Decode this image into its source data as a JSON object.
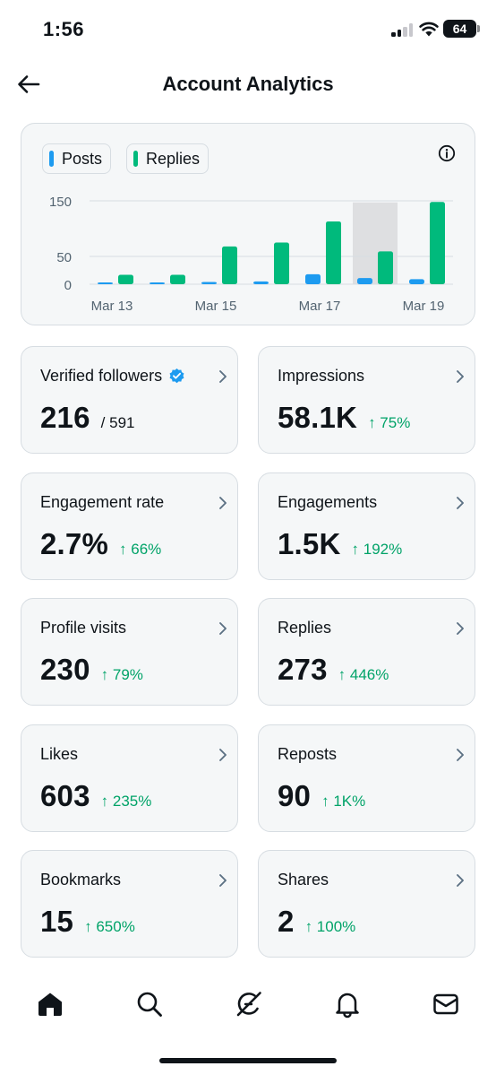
{
  "status_bar": {
    "time": "1:56",
    "battery": "64"
  },
  "header": {
    "title": "Account Analytics"
  },
  "colors": {
    "posts": "#1d9bf0",
    "replies": "#00ba7c",
    "positive": "#00a368"
  },
  "chart_data": {
    "type": "bar",
    "legend": [
      "Posts",
      "Replies"
    ],
    "x": [
      "Mar 13",
      "Mar 14",
      "Mar 15",
      "Mar 16",
      "Mar 17",
      "Mar 18",
      "Mar 19"
    ],
    "x_tick_labels": [
      "Mar 13",
      "Mar 15",
      "Mar 17",
      "Mar 19"
    ],
    "y_tick_labels": [
      "0",
      "50",
      "150"
    ],
    "ylim": [
      0,
      160
    ],
    "highlighted_category": "Mar 18",
    "series": [
      {
        "name": "Posts",
        "color": "#1d9bf0",
        "values": [
          1,
          0,
          4,
          5,
          18,
          11,
          9
        ]
      },
      {
        "name": "Replies",
        "color": "#00ba7c",
        "values": [
          17,
          17,
          68,
          75,
          113,
          59,
          148
        ]
      }
    ]
  },
  "cards": [
    {
      "label": "Verified followers",
      "value": "216",
      "sub": "/ 591",
      "delta": "",
      "verified": true
    },
    {
      "label": "Impressions",
      "value": "58.1K",
      "sub": "",
      "delta": "↑ 75%"
    },
    {
      "label": "Engagement rate",
      "value": "2.7%",
      "sub": "",
      "delta": "↑ 66%"
    },
    {
      "label": "Engagements",
      "value": "1.5K",
      "sub": "",
      "delta": "↑ 192%"
    },
    {
      "label": "Profile visits",
      "value": "230",
      "sub": "",
      "delta": "↑ 79%"
    },
    {
      "label": "Replies",
      "value": "273",
      "sub": "",
      "delta": "↑ 446%"
    },
    {
      "label": "Likes",
      "value": "603",
      "sub": "",
      "delta": "↑ 235%"
    },
    {
      "label": "Reposts",
      "value": "90",
      "sub": "",
      "delta": "↑ 1K%"
    },
    {
      "label": "Bookmarks",
      "value": "15",
      "sub": "",
      "delta": "↑ 650%"
    },
    {
      "label": "Shares",
      "value": "2",
      "sub": "",
      "delta": "↑ 100%"
    }
  ],
  "tabbar": {
    "icons": [
      "home-icon",
      "search-icon",
      "grok-icon",
      "notifications-icon",
      "messages-icon"
    ]
  }
}
